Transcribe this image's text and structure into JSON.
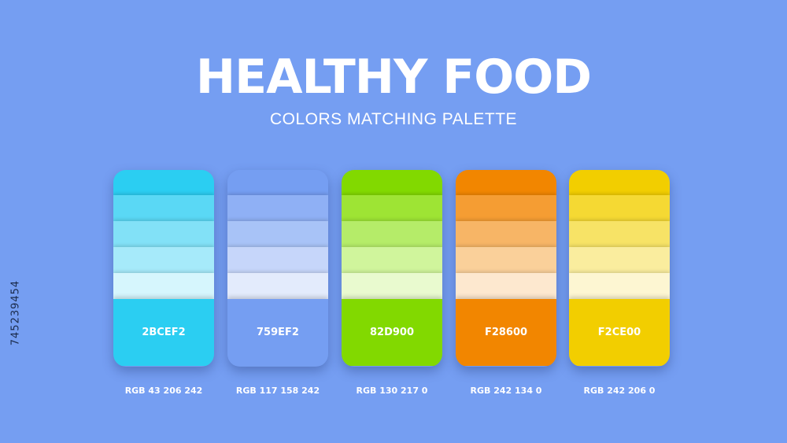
{
  "title": "HEALTHY FOOD",
  "subtitle": "COLORS MATCHING PALETTE",
  "side_id": "745239454",
  "palettes": [
    {
      "hex": "2BCEF2",
      "rgb": "RGB 43 206 242",
      "tints": [
        "#2bcef2",
        "#5ad8f5",
        "#82e1f7",
        "#a6eafa",
        "#d6f6fd"
      ],
      "main_color": "#2bcef2"
    },
    {
      "hex": "759EF2",
      "rgb": "RGB 117 158 242",
      "tints": [
        "#759ef2",
        "#8fb0f5",
        "#a8c3f7",
        "#c6d6fa",
        "#e3ebfc"
      ],
      "main_color": "#759ef2"
    },
    {
      "hex": "82D900",
      "rgb": "RGB 130 217 0",
      "tints": [
        "#82d900",
        "#9ee434",
        "#b5ec69",
        "#d0f59c",
        "#e9facf"
      ],
      "main_color": "#82d900"
    },
    {
      "hex": "F28600",
      "rgb": "RGB 242 134 0",
      "tints": [
        "#f28600",
        "#f59d33",
        "#f7b566",
        "#fad09a",
        "#fde8cf"
      ],
      "main_color": "#f28600"
    },
    {
      "hex": "F2CE00",
      "rgb": "RGB 242 206 0",
      "tints": [
        "#f2ce00",
        "#f5d933",
        "#f7e366",
        "#faed9e",
        "#fdf6d2"
      ],
      "main_color": "#f2ce00"
    }
  ]
}
